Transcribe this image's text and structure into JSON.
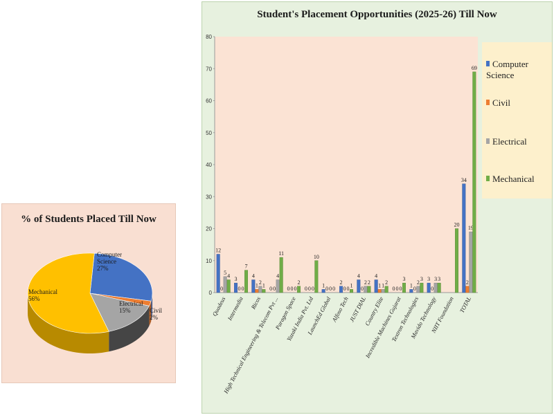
{
  "chart_data": [
    {
      "type": "pie",
      "title": "% of Students Placed Till Now",
      "labels": [
        "Computer Science",
        "Civil",
        "Electrical",
        "Mechanical"
      ],
      "values": [
        27,
        2,
        15,
        56
      ],
      "value_labels": [
        "27%",
        "2%",
        "15%",
        "56%"
      ],
      "colors": [
        "#4472c4",
        "#ed7d31",
        "#a5a5a5",
        "#ffc000"
      ],
      "style": "3d"
    },
    {
      "type": "bar",
      "title": "Student's Placement Opportunities (2025-26) Till Now",
      "categories": [
        "Quadeus",
        "Intermedia",
        "Ricos",
        "High Technical Engineering & Telecom Pvt ...",
        "Paragon Space",
        "Yazaki India Pvt. Ltd",
        "LaunchEd Global",
        "Alfoso Tech",
        "JUST DIAL",
        "Country Elite",
        "Incredible Machines Gujarat",
        "Textron Technologies",
        "Mavido Technology",
        "NIIT Foundation",
        "TOTAL"
      ],
      "series": [
        {
          "name": "Computer Science",
          "color": "#4472c4",
          "values": [
            12,
            3,
            4,
            0,
            0,
            0,
            1,
            2,
            4,
            4,
            0,
            1,
            3,
            null,
            34
          ]
        },
        {
          "name": "Civil",
          "color": "#ed7d31",
          "values": [
            0,
            0,
            1,
            0,
            0,
            0,
            0,
            0,
            0,
            1,
            0,
            0,
            0,
            null,
            2
          ]
        },
        {
          "name": "Electrical",
          "color": "#a5a5a5",
          "values": [
            5,
            0,
            2,
            4,
            0,
            0,
            0,
            0,
            2,
            1,
            0,
            2,
            3,
            null,
            19
          ]
        },
        {
          "name": "Mechanical",
          "color": "#70ad47",
          "values": [
            4,
            7,
            1,
            11,
            2,
            10,
            0,
            1,
            2,
            2,
            3,
            3,
            3,
            20,
            69
          ]
        }
      ],
      "ylim": [
        0,
        80
      ],
      "yticks": [
        0,
        10,
        20,
        30,
        40,
        50,
        60,
        70,
        80
      ],
      "grid": false,
      "legend": "right"
    }
  ]
}
